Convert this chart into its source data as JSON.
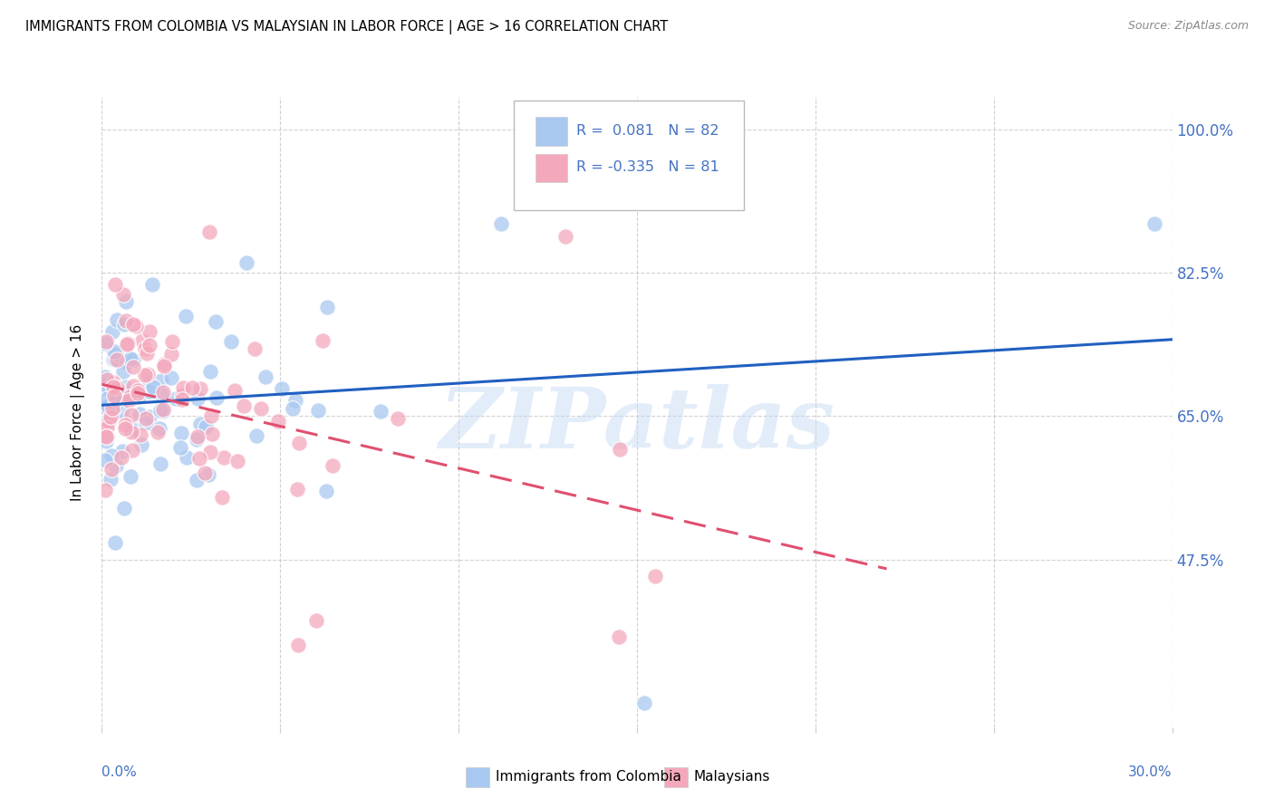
{
  "title": "IMMIGRANTS FROM COLOMBIA VS MALAYSIAN IN LABOR FORCE | AGE > 16 CORRELATION CHART",
  "source": "Source: ZipAtlas.com",
  "ylabel": "In Labor Force | Age > 16",
  "yticks": [
    "100.0%",
    "82.5%",
    "65.0%",
    "47.5%"
  ],
  "ytick_vals": [
    1.0,
    0.825,
    0.65,
    0.475
  ],
  "xlim": [
    0.0,
    0.3
  ],
  "ylim": [
    0.27,
    1.04
  ],
  "color_colombia": "#A8C8F0",
  "color_malaysia": "#F4A8BC",
  "color_trendline_colombia": "#2060C0",
  "color_trendline_malaysia": "#E05070",
  "color_axis_labels": "#4472C4",
  "background_color": "#FFFFFF",
  "watermark_text": "ZIPatlas",
  "legend_text_color": "#4472C4"
}
